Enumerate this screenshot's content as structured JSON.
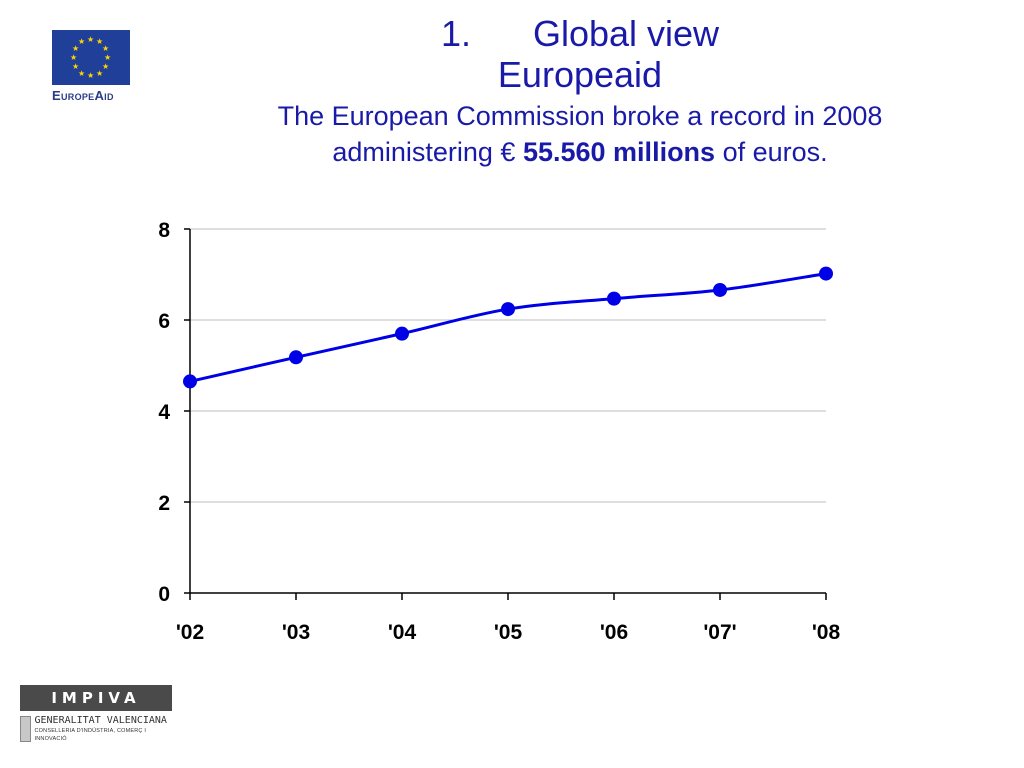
{
  "header": {
    "number": "1.",
    "title": "Global view",
    "subtitle": "Europeaid",
    "lead_before": "The European Commission broke a record in 2008",
    "lead_line2_before": "administering € ",
    "lead_bold": "55.560 millions",
    "lead_after": " of euros."
  },
  "logos": {
    "europeaid_word": "EuropeAid",
    "impiva_word": "IMPIVA",
    "generalitat": "GENERALITAT VALENCIANA",
    "conselleria": "CONSELLERIA D'INDÚSTRIA, COMERÇ I INNOVACIÓ"
  },
  "colors": {
    "title_text": "#1a1aa8",
    "series_line": "#0000e6",
    "grid": "#bdbdbd"
  },
  "chart_data": {
    "type": "line",
    "categories": [
      "'02",
      "'03",
      "'04",
      "'05",
      "'06",
      "'07'",
      "'08"
    ],
    "values": [
      4.65,
      5.18,
      5.7,
      6.24,
      6.47,
      6.66,
      7.02
    ],
    "ylim": [
      0,
      8
    ],
    "yticks": [
      "0",
      "2",
      "4",
      "6",
      "8"
    ],
    "ytick_values": [
      0,
      2,
      4,
      6,
      8
    ],
    "grid": true,
    "smoothed": true,
    "markers": true
  }
}
